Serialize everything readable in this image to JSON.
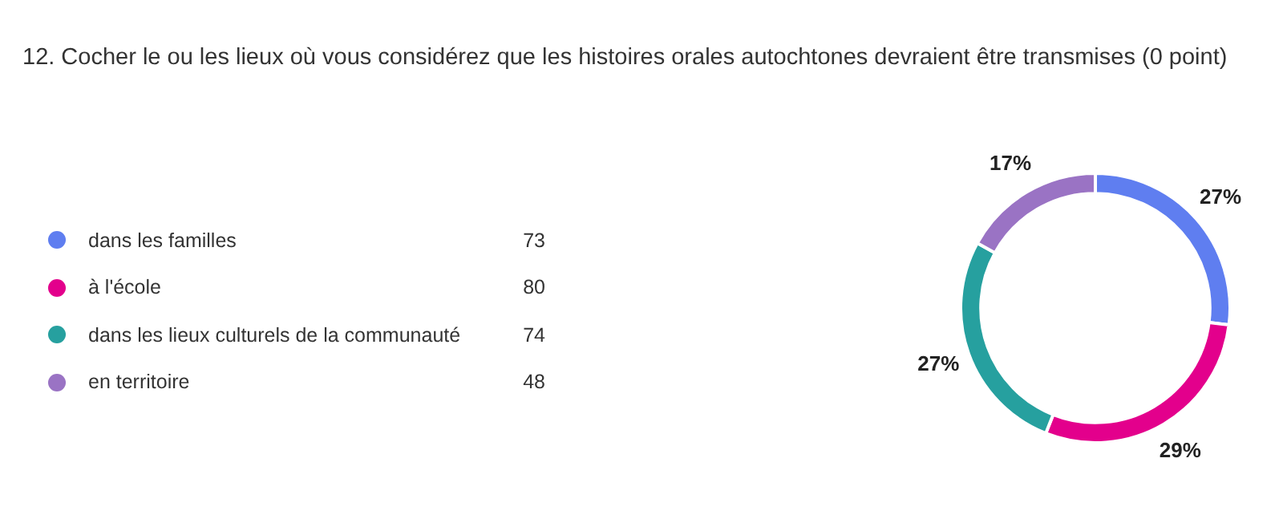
{
  "chart_data": {
    "type": "donut",
    "title": "12. Cocher le ou les lieux où vous considérez que les histoires orales autochtones devraient être transmises (0 point)",
    "categories": [
      "dans les familles",
      "à l'école",
      "dans les lieux culturels de la communauté",
      "en territoire"
    ],
    "values": [
      27,
      29,
      27,
      17
    ],
    "colors": [
      "#5f7ef0",
      "#e3008c",
      "#26a09f",
      "#9a73c4"
    ],
    "value_labels": [
      "27%",
      "29%",
      "27%",
      "17%"
    ],
    "annotations": [
      {
        "text": "73",
        "x": "dans les familles"
      },
      {
        "text": "80",
        "x": "à l'école"
      },
      {
        "text": "74",
        "x": "dans les lieux culturels de la communauté"
      },
      {
        "text": "48",
        "x": "en territoire"
      }
    ],
    "legend": "left"
  }
}
